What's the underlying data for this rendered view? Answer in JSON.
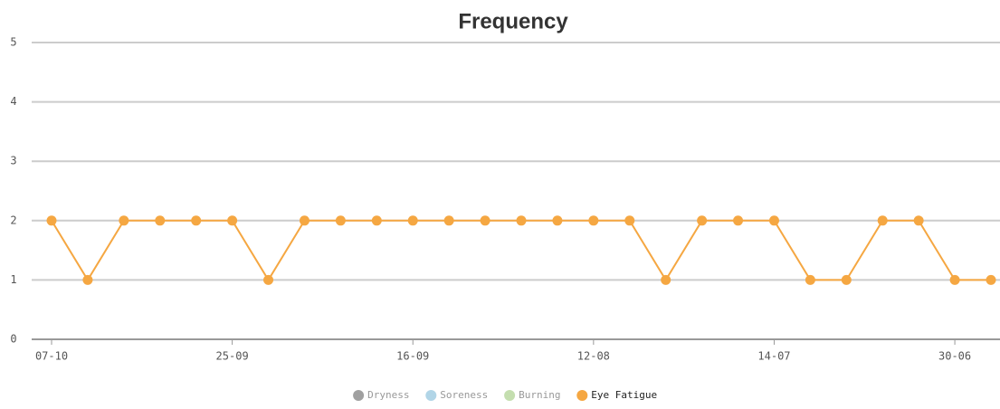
{
  "chart_data": {
    "type": "line",
    "title": "Frequency",
    "categories": [
      "07-10",
      null,
      null,
      null,
      null,
      "25-09",
      null,
      null,
      null,
      null,
      "16-09",
      null,
      null,
      null,
      null,
      "12-08",
      null,
      null,
      null,
      null,
      "14-07",
      null,
      null,
      null,
      null,
      "30-06",
      null
    ],
    "series": [
      {
        "name": "Dryness",
        "color": "#888888",
        "visible": false,
        "values": [
          null,
          null,
          null,
          null,
          null,
          null,
          null,
          null,
          null,
          null,
          null,
          null,
          null,
          null,
          null,
          null,
          null,
          null,
          null,
          null,
          null,
          null,
          null,
          null,
          null,
          null,
          null
        ]
      },
      {
        "name": "Soreness",
        "color": "#9ecae1",
        "visible": false,
        "values": [
          null,
          null,
          null,
          null,
          null,
          null,
          null,
          null,
          null,
          null,
          null,
          null,
          null,
          null,
          null,
          null,
          null,
          null,
          null,
          null,
          null,
          null,
          null,
          null,
          null,
          null,
          null
        ]
      },
      {
        "name": "Burning",
        "color": "#b5d69b",
        "visible": false,
        "values": [
          null,
          null,
          null,
          null,
          null,
          null,
          null,
          null,
          null,
          null,
          null,
          null,
          null,
          null,
          null,
          null,
          null,
          null,
          null,
          null,
          null,
          null,
          null,
          null,
          null,
          null,
          null
        ]
      },
      {
        "name": "Eye Fatigue",
        "color": "#f5a742",
        "visible": true,
        "values": [
          2,
          1,
          2,
          2,
          2,
          2,
          1,
          2,
          2,
          2,
          2,
          2,
          2,
          2,
          2,
          2,
          2,
          1,
          2,
          2,
          2,
          1,
          1,
          2,
          2,
          1,
          1
        ]
      }
    ],
    "ylim": [
      0,
      5
    ],
    "yticks": [
      0,
      1,
      2,
      3,
      4,
      5
    ],
    "grid": true,
    "legend": "bottom"
  }
}
